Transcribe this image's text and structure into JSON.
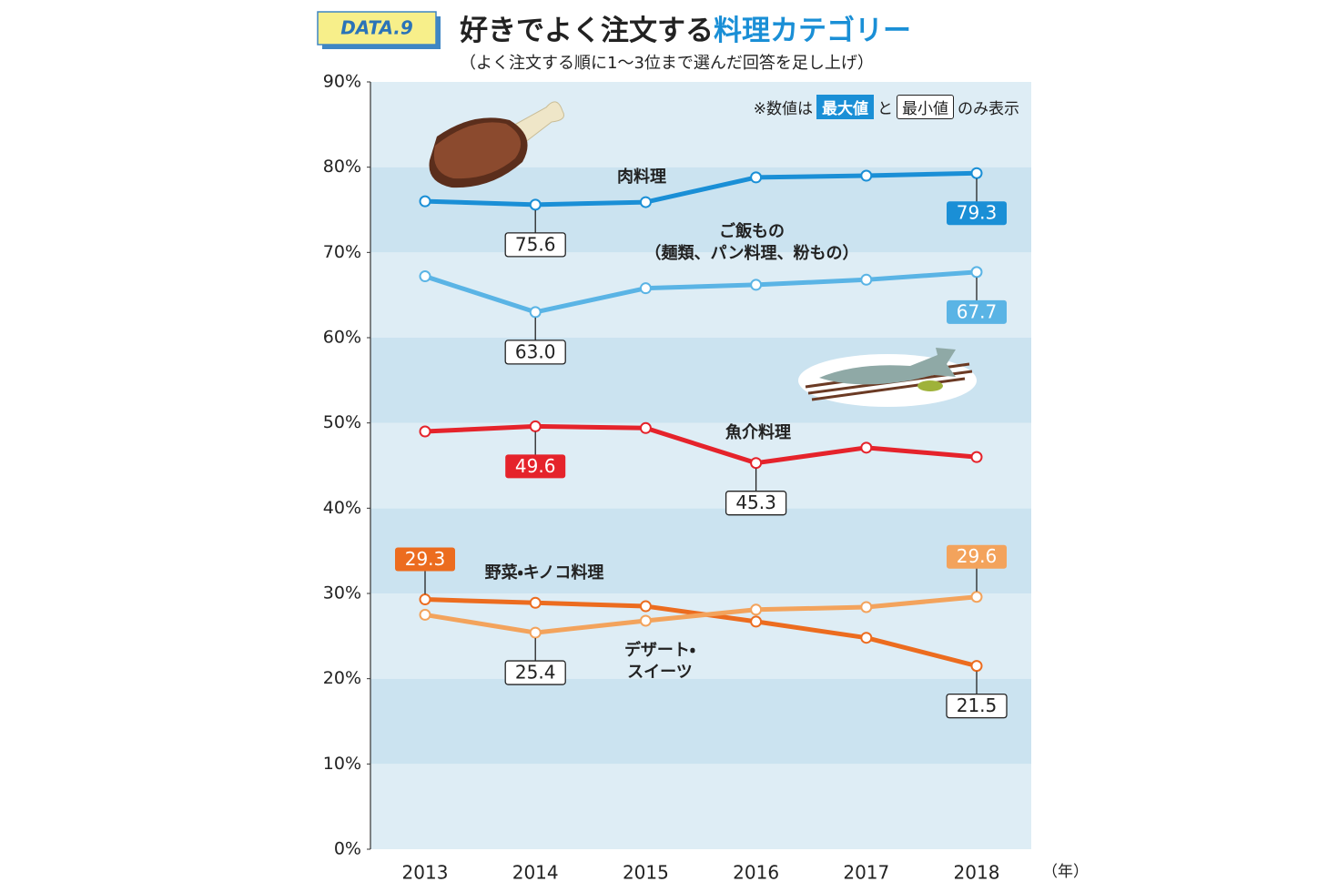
{
  "badge": "DATA.9",
  "note": [
    "※数値は",
    "最大値",
    "と",
    "最小値",
    "のみ表示"
  ],
  "chart_data": {
    "type": "line",
    "title": [
      "好きでよく注文する",
      "料理カテゴリー"
    ],
    "subtitle": "（よく注文する順に1〜3位まで選んだ回答を足し上げ）",
    "x_unit": "（年）",
    "categories": [
      "2013",
      "2014",
      "2015",
      "2016",
      "2017",
      "2018"
    ],
    "ylim": [
      0,
      90
    ],
    "yticks": [
      {
        "value": 0,
        "label": "0%"
      },
      {
        "value": 10,
        "label": "10%"
      },
      {
        "value": 20,
        "label": "20%"
      },
      {
        "value": 30,
        "label": "30%"
      },
      {
        "value": 40,
        "label": "40%"
      },
      {
        "value": 50,
        "label": "50%"
      },
      {
        "value": 60,
        "label": "60%"
      },
      {
        "value": 70,
        "label": "70%"
      },
      {
        "value": 80,
        "label": "80%"
      },
      {
        "value": 90,
        "label": "90%"
      }
    ],
    "band_colors": [
      "#deedf5",
      "#cbe3f0"
    ],
    "series": [
      {
        "name": "肉料理",
        "color": "#1a8fd6",
        "values": [
          76.0,
          75.6,
          75.9,
          78.8,
          79.0,
          79.3
        ],
        "value_labels": [
          null,
          "75.6",
          null,
          null,
          null,
          "79.3"
        ]
      },
      {
        "name": "ご飯もの\n（麺類、パン料理、粉もの）",
        "color": "#5ab4e5",
        "values": [
          67.2,
          63.0,
          65.8,
          66.2,
          66.8,
          67.7
        ],
        "value_labels": [
          null,
          "63.0",
          null,
          null,
          null,
          "67.7"
        ]
      },
      {
        "name": "魚介料理",
        "color": "#e5232b",
        "values": [
          49.0,
          49.6,
          49.4,
          45.3,
          47.1,
          46.0
        ],
        "value_labels": [
          null,
          "49.6",
          null,
          "45.3",
          null,
          null
        ]
      },
      {
        "name": "野菜・キノコ料理",
        "color": "#ec6c1f",
        "values": [
          29.3,
          28.9,
          28.5,
          26.7,
          24.8,
          21.5
        ],
        "value_labels": [
          "29.3",
          null,
          null,
          null,
          null,
          "21.5"
        ]
      },
      {
        "name": "デザート・\nスイーツ",
        "color": "#f3a35c",
        "values": [
          27.5,
          25.4,
          26.8,
          28.1,
          28.4,
          29.6
        ],
        "value_labels": [
          null,
          "25.4",
          null,
          null,
          null,
          "29.6"
        ]
      }
    ]
  }
}
